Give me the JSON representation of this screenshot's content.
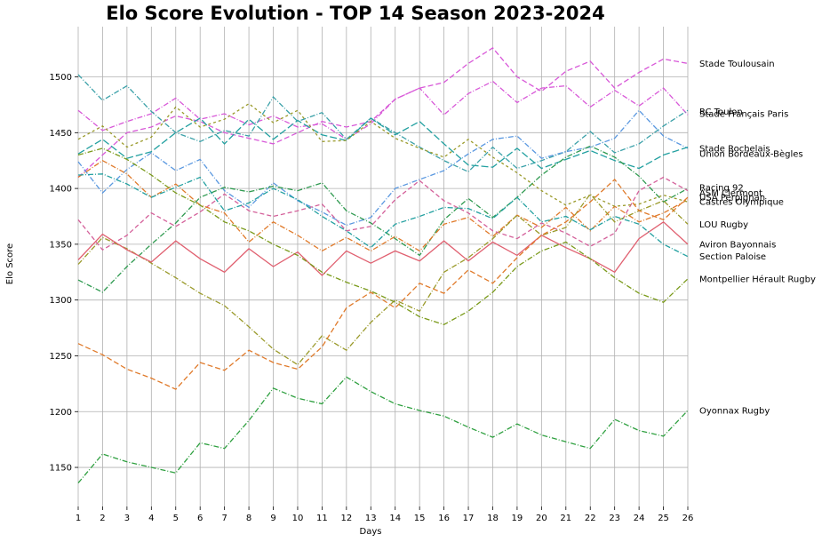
{
  "chart_data": {
    "type": "line",
    "title": "Elo Score Evolution - TOP 14 Season 2023-2024",
    "xlabel": "Days",
    "ylabel": "Elo Score",
    "x": [
      1,
      2,
      3,
      4,
      5,
      6,
      7,
      8,
      9,
      10,
      11,
      12,
      13,
      14,
      15,
      16,
      17,
      18,
      19,
      20,
      21,
      22,
      23,
      24,
      25,
      26
    ],
    "xlim": [
      1,
      26
    ],
    "ylim": [
      1115,
      1545
    ],
    "yticks": [
      1150,
      1200,
      1250,
      1300,
      1350,
      1400,
      1450,
      1500
    ],
    "grid": true,
    "legend": "line-end labels",
    "series": [
      {
        "name": "Stade Toulousain",
        "color": "#d858d8",
        "dash": "6,3",
        "end_label_y": 1512,
        "values": [
          1410,
          1430,
          1450,
          1455,
          1465,
          1460,
          1450,
          1445,
          1440,
          1450,
          1460,
          1455,
          1460,
          1480,
          1490,
          1495,
          1512,
          1526,
          1500,
          1487,
          1505,
          1514,
          1490,
          1504,
          1516,
          1512
        ]
      },
      {
        "name": "RC Toulon",
        "color": "#d858d8",
        "dash": "6,2,1,2",
        "end_label_y": 1469,
        "values": [
          1470,
          1452,
          1460,
          1467,
          1481,
          1462,
          1467,
          1457,
          1465,
          1455,
          1458,
          1444,
          1458,
          1480,
          1490,
          1466,
          1485,
          1496,
          1477,
          1490,
          1492,
          1473,
          1488,
          1474,
          1490,
          1466
        ]
      },
      {
        "name": "Stade Français Paris",
        "color": "#3aa0a8",
        "dash": "6,2,1,2",
        "end_label_y": 1467,
        "values": [
          1502,
          1479,
          1492,
          1469,
          1450,
          1442,
          1452,
          1447,
          1482,
          1460,
          1468,
          1444,
          1463,
          1450,
          1437,
          1425,
          1415,
          1437,
          1418,
          1425,
          1433,
          1451,
          1432,
          1440,
          1456,
          1470
        ]
      },
      {
        "name": "Stade Rochelais",
        "color": "#5a98e0",
        "dash": "6,2,1,2",
        "end_label_y": 1436,
        "values": [
          1424,
          1396,
          1417,
          1432,
          1416,
          1426,
          1398,
          1383,
          1405,
          1389,
          1379,
          1367,
          1374,
          1400,
          1408,
          1416,
          1431,
          1444,
          1447,
          1427,
          1433,
          1437,
          1445,
          1470,
          1447,
          1436
        ]
      },
      {
        "name": "Union Bordeaux-Bègles",
        "color": "#22a0a0",
        "dash": "8,3",
        "end_label_y": 1431,
        "values": [
          1431,
          1444,
          1427,
          1433,
          1450,
          1463,
          1440,
          1462,
          1444,
          1461,
          1448,
          1443,
          1463,
          1448,
          1460,
          1440,
          1421,
          1419,
          1436,
          1418,
          1426,
          1434,
          1425,
          1418,
          1430,
          1437
        ]
      },
      {
        "name": "Racing 92",
        "color": "#2f9a50",
        "dash": "6,2,1,2",
        "end_label_y": 1401,
        "values": [
          1318,
          1307,
          1330,
          1350,
          1369,
          1392,
          1401,
          1397,
          1402,
          1398,
          1405,
          1380,
          1369,
          1355,
          1340,
          1372,
          1391,
          1374,
          1392,
          1412,
          1428,
          1438,
          1428,
          1411,
          1388,
          1400
        ]
      },
      {
        "name": "ASM Clermont",
        "color": "#d4609a",
        "dash": "5,3",
        "end_label_y": 1396,
        "values": [
          1372,
          1345,
          1358,
          1378,
          1366,
          1379,
          1395,
          1380,
          1375,
          1380,
          1386,
          1362,
          1366,
          1390,
          1407,
          1389,
          1378,
          1362,
          1355,
          1369,
          1360,
          1348,
          1360,
          1398,
          1410,
          1398
        ]
      },
      {
        "name": "USA Perpignan",
        "color": "#e07a2a",
        "dash": "6,2,1,2",
        "end_label_y": 1392,
        "values": [
          1410,
          1425,
          1413,
          1392,
          1404,
          1385,
          1378,
          1352,
          1370,
          1358,
          1344,
          1356,
          1344,
          1357,
          1344,
          1368,
          1374,
          1357,
          1376,
          1365,
          1383,
          1362,
          1384,
          1370,
          1378,
          1390
        ]
      },
      {
        "name": "Castres Olympique",
        "color": "#9a9a2a",
        "dash": "3,3",
        "end_label_y": 1388,
        "values": [
          1444,
          1456,
          1437,
          1446,
          1473,
          1455,
          1462,
          1476,
          1459,
          1470,
          1442,
          1443,
          1460,
          1445,
          1436,
          1428,
          1444,
          1428,
          1414,
          1398,
          1385,
          1394,
          1384,
          1386,
          1394,
          1388
        ]
      },
      {
        "name": "LOU Rugby",
        "color": "#9a9a2a",
        "dash": "6,2,1,2",
        "end_label_y": 1368,
        "values": [
          1332,
          1356,
          1346,
          1333,
          1320,
          1306,
          1295,
          1276,
          1256,
          1242,
          1268,
          1255,
          1280,
          1300,
          1290,
          1325,
          1338,
          1355,
          1376,
          1358,
          1365,
          1395,
          1370,
          1380,
          1389,
          1368
        ]
      },
      {
        "name": "Aviron Bayonnais",
        "color": "#e06070",
        "dash": "",
        "end_label_y": 1350,
        "values": [
          1336,
          1359,
          1345,
          1334,
          1353,
          1337,
          1325,
          1346,
          1330,
          1343,
          1322,
          1344,
          1333,
          1344,
          1335,
          1353,
          1335,
          1352,
          1340,
          1358,
          1347,
          1337,
          1325,
          1355,
          1370,
          1350
        ]
      },
      {
        "name": "Section Paloise",
        "color": "#22a0a0",
        "dash": "6,2,1,2",
        "end_label_y": 1339,
        "values": [
          1412,
          1413,
          1404,
          1392,
          1401,
          1410,
          1380,
          1387,
          1400,
          1390,
          1375,
          1362,
          1347,
          1368,
          1375,
          1383,
          1382,
          1373,
          1392,
          1370,
          1375,
          1363,
          1375,
          1368,
          1350,
          1339
        ]
      },
      {
        "name": "Montpellier Hérault Rugby",
        "color": "#7a9a1a",
        "dash": "6,2,1,2",
        "end_label_y": 1319,
        "values": [
          1430,
          1436,
          1426,
          1412,
          1396,
          1385,
          1370,
          1362,
          1350,
          1340,
          1325,
          1316,
          1308,
          1298,
          1285,
          1278,
          1290,
          1307,
          1330,
          1344,
          1352,
          1337,
          1320,
          1306,
          1298,
          1319
        ]
      },
      {
        "name": "Oyonnax Rugby",
        "color": "#2fa040",
        "dash": "6,2,1,2",
        "end_label_y": 1201,
        "values": [
          1136,
          1162,
          1155,
          1150,
          1145,
          1172,
          1167,
          1192,
          1221,
          1212,
          1207,
          1231,
          1218,
          1207,
          1201,
          1196,
          1186,
          1177,
          1189,
          1179,
          1173,
          1167,
          1193,
          1183,
          1178,
          1201
        ]
      },
      {
        "name": "",
        "color": "#e07a2a",
        "dash": "6,3",
        "end_label_y": null,
        "values": [
          1261,
          1251,
          1238,
          1230,
          1220,
          1244,
          1237,
          1255,
          1244,
          1238,
          1258,
          1293,
          1307,
          1293,
          1315,
          1306,
          1327,
          1315,
          1338,
          1358,
          1370,
          1388,
          1408,
          1380,
          1372,
          1392
        ]
      }
    ]
  }
}
